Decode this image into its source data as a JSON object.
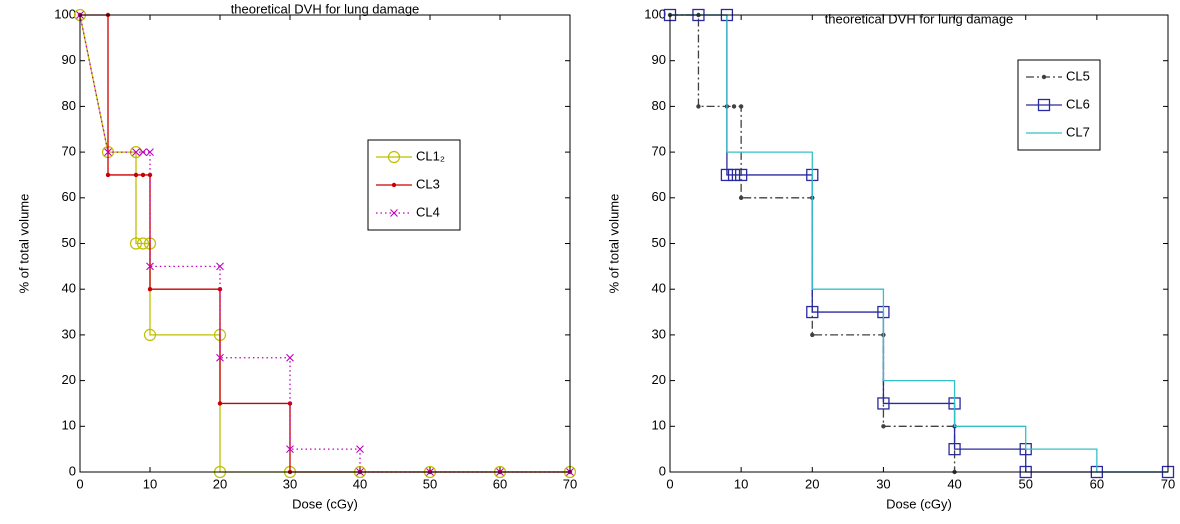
{
  "chart_data": [
    {
      "type": "line",
      "title": "theoretical DVH for lung damage",
      "xlabel": "Dose (cGy)",
      "ylabel": "% of total volume",
      "xlim": [
        0,
        70
      ],
      "ylim": [
        0,
        100
      ],
      "xticks": [
        0,
        10,
        20,
        30,
        40,
        50,
        60,
        70
      ],
      "yticks": [
        0,
        10,
        20,
        30,
        40,
        50,
        60,
        70,
        80,
        90,
        100
      ],
      "legend": "east",
      "series": [
        {
          "name": "CL1₂",
          "color": "#bfbf00",
          "marker": "circle",
          "linestyle": "solid",
          "x": [
            0,
            4,
            8,
            8,
            9,
            10,
            10,
            20,
            20,
            30,
            40,
            50,
            60,
            70
          ],
          "values": [
            100,
            70,
            70,
            50,
            50,
            50,
            30,
            30,
            0,
            0,
            0,
            0,
            0,
            0
          ]
        },
        {
          "name": "CL3",
          "color": "#cc0000",
          "marker": "dot",
          "linestyle": "solid",
          "x": [
            0,
            4,
            4,
            8,
            9,
            10,
            10,
            20,
            20,
            30,
            30,
            40,
            50,
            60,
            70
          ],
          "values": [
            100,
            100,
            65,
            65,
            65,
            65,
            40,
            40,
            15,
            15,
            0,
            0,
            0,
            0,
            0
          ]
        },
        {
          "name": "CL4",
          "color": "#bf00bf",
          "marker": "x",
          "linestyle": "dotted",
          "x": [
            0,
            4,
            8,
            9,
            10,
            10,
            20,
            20,
            30,
            30,
            40,
            40,
            50,
            60,
            70
          ],
          "values": [
            100,
            70,
            70,
            70,
            70,
            45,
            45,
            25,
            25,
            5,
            5,
            0,
            0,
            0,
            0
          ]
        }
      ]
    },
    {
      "type": "line",
      "title": "theoretical DVH for lung damage",
      "xlabel": "Dose (cGy)",
      "ylabel": "% of total volume",
      "xlim": [
        0,
        70
      ],
      "ylim": [
        0,
        100
      ],
      "xticks": [
        0,
        10,
        20,
        30,
        40,
        50,
        60,
        70
      ],
      "yticks": [
        0,
        10,
        20,
        30,
        40,
        50,
        60,
        70,
        80,
        90,
        100
      ],
      "legend": "northeast",
      "series": [
        {
          "name": "CL5",
          "color": "#404040",
          "marker": "dot",
          "linestyle": "dashdot",
          "x": [
            0,
            4,
            4,
            8,
            9,
            10,
            10,
            20,
            20,
            30,
            30,
            40,
            40
          ],
          "values": [
            100,
            100,
            80,
            80,
            80,
            80,
            60,
            60,
            30,
            30,
            10,
            10,
            0
          ]
        },
        {
          "name": "CL6",
          "color": "#2a2aa0",
          "marker": "square",
          "linestyle": "solid",
          "x": [
            0,
            4,
            8,
            8,
            9,
            10,
            20,
            20,
            30,
            30,
            40,
            40,
            50,
            50,
            60,
            70
          ],
          "values": [
            100,
            100,
            100,
            65,
            65,
            65,
            65,
            35,
            35,
            15,
            15,
            5,
            5,
            0,
            0,
            0
          ]
        },
        {
          "name": "CL7",
          "color": "#33c0c8",
          "marker": "none",
          "linestyle": "solid",
          "x": [
            0,
            8,
            8,
            20,
            20,
            30,
            30,
            40,
            40,
            50,
            50,
            60,
            60,
            70
          ],
          "values": [
            100,
            100,
            70,
            70,
            40,
            40,
            20,
            20,
            10,
            10,
            5,
            5,
            0,
            0
          ]
        }
      ]
    }
  ]
}
